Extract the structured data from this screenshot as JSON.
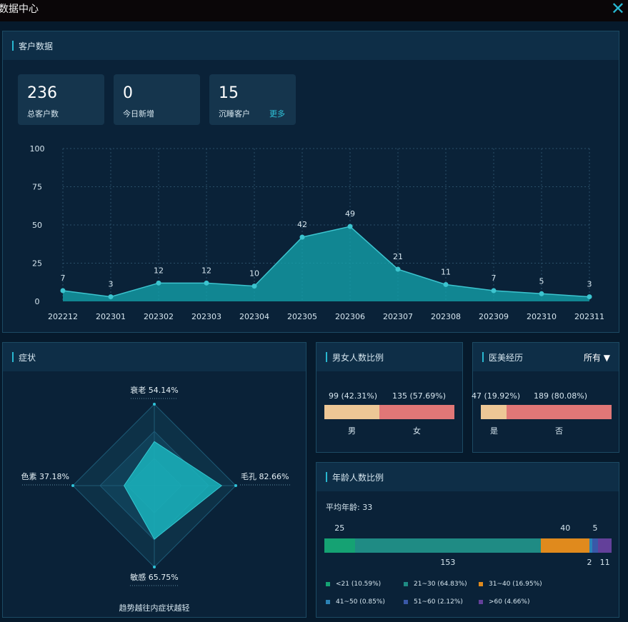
{
  "window": {
    "title": "数据中心"
  },
  "customer": {
    "title": "客户数据",
    "stats": [
      {
        "value": "236",
        "label": "总客户数"
      },
      {
        "value": "0",
        "label": "今日新增"
      },
      {
        "value": "15",
        "label": "沉睡客户"
      }
    ],
    "more_label": "更多"
  },
  "chart_data": {
    "type": "area",
    "categories": [
      "202212",
      "202301",
      "202302",
      "202303",
      "202304",
      "202305",
      "202306",
      "202307",
      "202308",
      "202309",
      "202310",
      "202311"
    ],
    "values": [
      7,
      3,
      12,
      12,
      10,
      42,
      49,
      21,
      11,
      7,
      5,
      3
    ],
    "ylim": [
      0,
      100
    ],
    "yticks": [
      0,
      25,
      50,
      75,
      100
    ],
    "grid": true,
    "colors": {
      "fill": "#13a3ac",
      "line": "#3cc4cf",
      "point": "#3cc4cf"
    }
  },
  "symptoms": {
    "title": "症状",
    "axes": [
      {
        "name": "衰老",
        "value": "54.14%",
        "pct": 54.14
      },
      {
        "name": "毛孔",
        "value": "82.66%",
        "pct": 82.66
      },
      {
        "name": "敏感",
        "value": "65.75%",
        "pct": 65.75
      },
      {
        "name": "色素",
        "value": "37.18%",
        "pct": 37.18
      }
    ],
    "caption": "趋势越往内症状越轻"
  },
  "gender": {
    "title": "男女人数比例",
    "segments": [
      {
        "label": "男",
        "value": "99 (42.31%)",
        "pct": 42.31,
        "color": "#edc796"
      },
      {
        "label": "女",
        "value": "135 (57.69%)",
        "pct": 57.69,
        "color": "#e07777"
      }
    ]
  },
  "cosmetic": {
    "title": "医美经历",
    "filter_label": "所有 ▼",
    "segments": [
      {
        "label": "是",
        "value": "47 (19.92%)",
        "pct": 19.92,
        "color": "#edc796"
      },
      {
        "label": "否",
        "value": "189 (80.08%)",
        "pct": 80.08,
        "color": "#e07777"
      }
    ]
  },
  "age": {
    "title": "年龄人数比例",
    "average_label": "平均年龄: 33",
    "segments": [
      {
        "count": "25",
        "pct": 10.59,
        "color": "#15a273",
        "legend": "<21 (10.59%)"
      },
      {
        "count": "153",
        "pct": 64.83,
        "color": "#1f8b84",
        "legend": "21~30 (64.83%)"
      },
      {
        "count": "40",
        "pct": 16.95,
        "color": "#e08a1d",
        "legend": "31~40 (16.95%)"
      },
      {
        "count": "2",
        "pct": 0.85,
        "color": "#2b82b5",
        "legend": "41~50 (0.85%)"
      },
      {
        "count": "5",
        "pct": 2.12,
        "color": "#3958a8",
        "legend": "51~60 (2.12%)"
      },
      {
        "count": "11",
        "pct": 4.66,
        "color": "#63409a",
        "legend": ">60 (4.66%)"
      }
    ]
  }
}
